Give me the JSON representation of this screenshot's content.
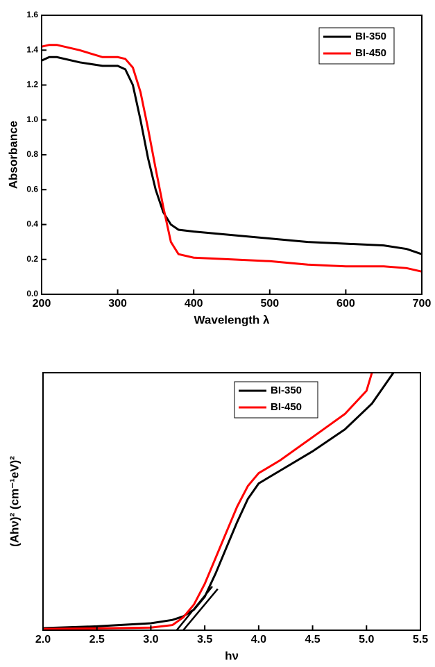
{
  "chart_data": [
    {
      "type": "line",
      "xlabel": "Wavelength λ",
      "ylabel": "Absorbance",
      "x": [
        200,
        210,
        220,
        250,
        280,
        300,
        310,
        320,
        330,
        340,
        350,
        360,
        370,
        380,
        400,
        450,
        500,
        550,
        600,
        650,
        680,
        700
      ],
      "series": [
        {
          "name": "BI-350",
          "color": "#000000",
          "values": [
            1.34,
            1.36,
            1.36,
            1.33,
            1.31,
            1.31,
            1.29,
            1.2,
            1.0,
            0.78,
            0.6,
            0.47,
            0.4,
            0.37,
            0.36,
            0.34,
            0.32,
            0.3,
            0.29,
            0.28,
            0.26,
            0.23
          ]
        },
        {
          "name": "BI-450",
          "color": "#ff0000",
          "values": [
            1.42,
            1.43,
            1.43,
            1.4,
            1.36,
            1.36,
            1.35,
            1.3,
            1.16,
            0.95,
            0.72,
            0.5,
            0.3,
            0.23,
            0.21,
            0.2,
            0.19,
            0.17,
            0.16,
            0.16,
            0.15,
            0.13
          ]
        }
      ],
      "xlim": [
        200,
        700
      ],
      "xticks": [
        200,
        300,
        400,
        500,
        600,
        700
      ],
      "ylim": [
        0,
        1.6
      ],
      "yticks": [
        {
          "value": 0,
          "label": "0.0"
        },
        0.2,
        0.4,
        0.6,
        0.8,
        {
          "value": 1,
          "label": "1.0"
        },
        1.2,
        1.4,
        1.6
      ],
      "legend": "upper right"
    },
    {
      "type": "line",
      "xlabel": "hν",
      "ylabel": "(Ahν)² (cm⁻¹eV)²",
      "x": [
        2.0,
        2.5,
        3.0,
        3.2,
        3.3,
        3.4,
        3.5,
        3.6,
        3.7,
        3.8,
        3.9,
        4.0,
        4.2,
        4.5,
        4.8,
        5.0,
        5.05,
        5.25
      ],
      "series": [
        {
          "name": "BI-350",
          "color": "#000000",
          "values": [
            0.08,
            0.15,
            0.27,
            0.4,
            0.54,
            0.8,
            1.3,
            2.2,
            3.2,
            4.2,
            5.1,
            5.7,
            6.2,
            6.95,
            7.8,
            8.6,
            8.8,
            10
          ]
        },
        {
          "name": "BI-450",
          "color": "#ff0000",
          "values": [
            0.05,
            0.07,
            0.1,
            0.2,
            0.5,
            1.0,
            1.8,
            2.8,
            3.8,
            4.8,
            5.6,
            6.1,
            6.6,
            7.5,
            8.4,
            9.3,
            10,
            null
          ]
        }
      ],
      "fit_lines": [
        {
          "color": "#000000",
          "x": [
            3.24,
            3.57
          ],
          "values": [
            0,
            1.7
          ]
        },
        {
          "color": "#000000",
          "x": [
            3.3,
            3.62
          ],
          "values": [
            0,
            1.6
          ]
        }
      ],
      "xlim": [
        2,
        5.5
      ],
      "xticks": [
        {
          "value": 2,
          "label": "2.0"
        },
        2.5,
        {
          "value": 3,
          "label": "3.0"
        },
        3.5,
        {
          "value": 4,
          "label": "4.0"
        },
        4.5,
        {
          "value": 5,
          "label": "5.0"
        },
        5.5
      ],
      "ylim": [
        0,
        10
      ],
      "legend": "upper center"
    }
  ]
}
